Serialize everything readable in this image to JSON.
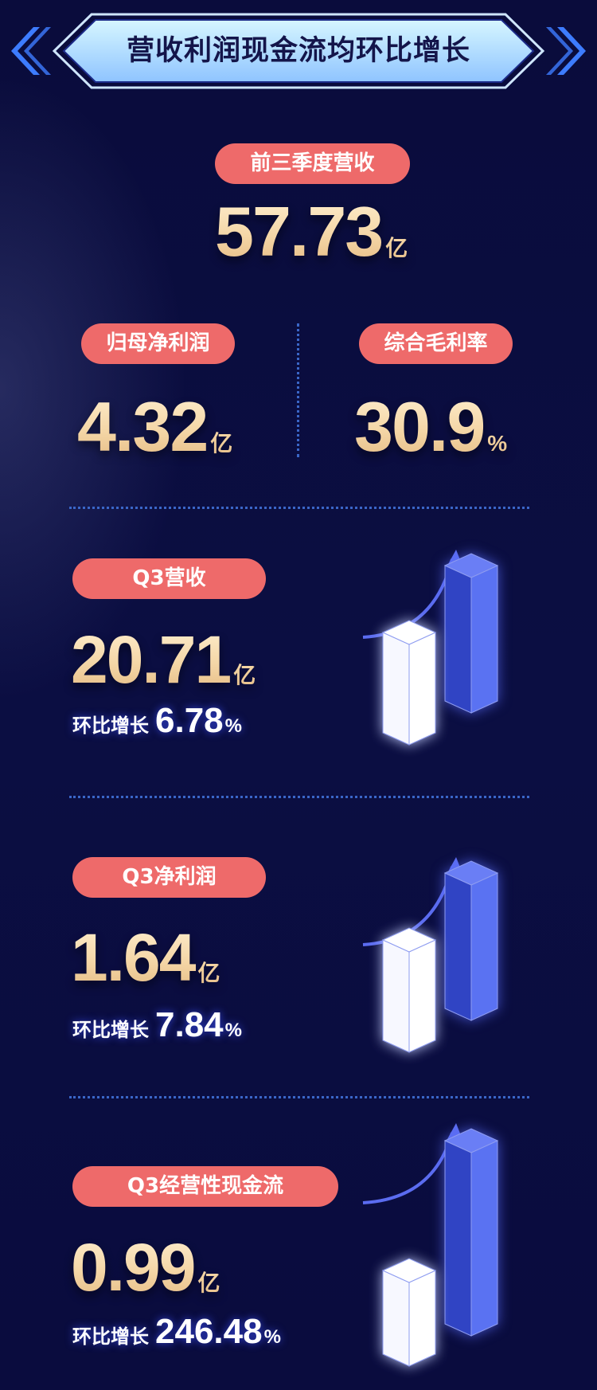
{
  "title": "营收利润现金流均环比增长",
  "colors": {
    "background": "#0a0c3c",
    "pill": "#ee6a6a",
    "number_gold": "#f4d6a6",
    "bar_blue": "#5a6ef0",
    "bar_white": "#ffffff",
    "divider": "#3a66c8"
  },
  "summary": {
    "revenue_ytd": {
      "label": "前三季度营收",
      "value": "57.73",
      "unit": "亿"
    },
    "net_profit": {
      "label": "归母净利润",
      "value": "4.32",
      "unit": "亿"
    },
    "gross_margin": {
      "label": "综合毛利率",
      "value": "30.9",
      "unit": "%"
    }
  },
  "sections": [
    {
      "label": "Q3营收",
      "value": "20.71",
      "unit": "亿",
      "growth_label": "环比增长",
      "growth_value": "6.78",
      "growth_unit": "%",
      "icon": "bar-growth-icon"
    },
    {
      "label": "Q3净利润",
      "value": "1.64",
      "unit": "亿",
      "growth_label": "环比增长",
      "growth_value": "7.84",
      "growth_unit": "%",
      "icon": "bar-growth-icon"
    },
    {
      "label": "Q3经营性现金流",
      "value": "0.99",
      "unit": "亿",
      "growth_label": "环比增长",
      "growth_value": "246.48",
      "growth_unit": "%",
      "icon": "bar-growth-icon"
    }
  ]
}
